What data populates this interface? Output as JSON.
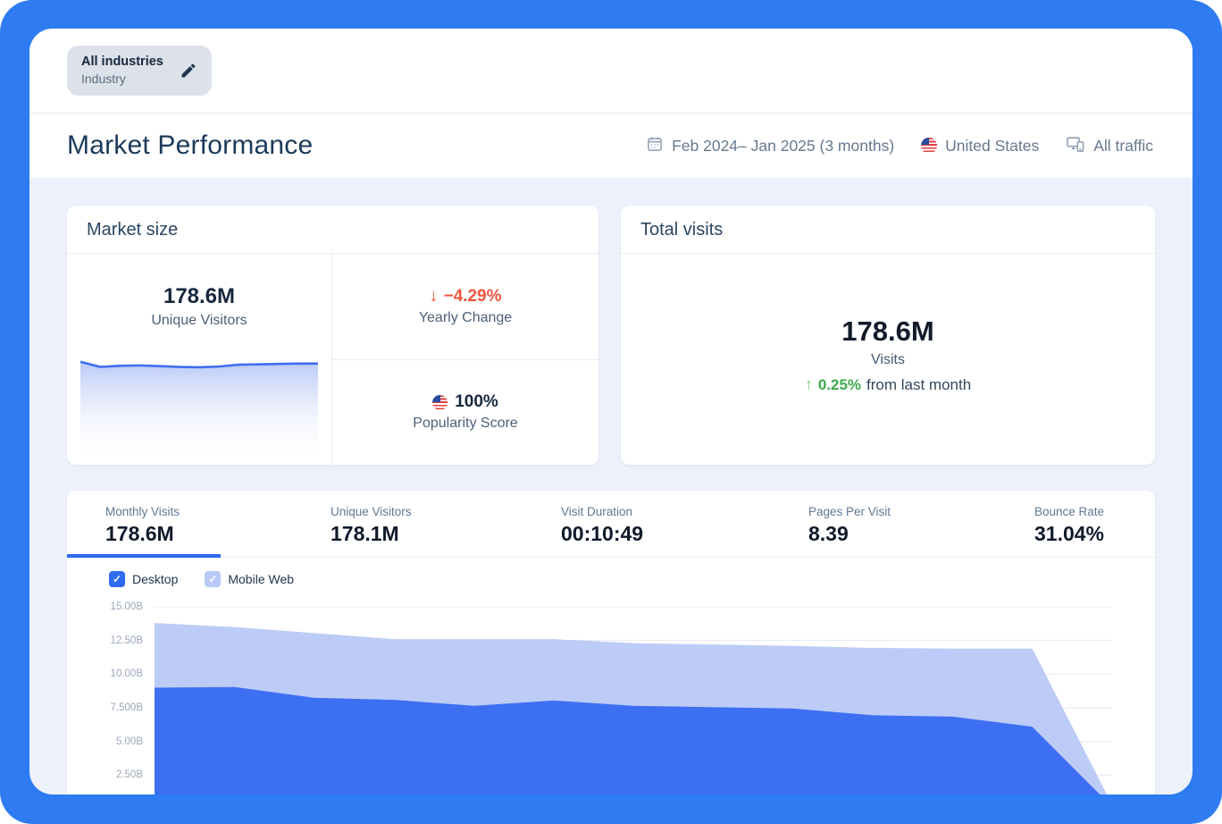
{
  "chip": {
    "title": "All industries",
    "subtitle": "Industry",
    "edit_icon": "pencil-icon"
  },
  "header": {
    "title": "Market Performance",
    "date_range": "Feb 2024– Jan 2025 (3 months)",
    "country": "United States",
    "traffic": "All traffic",
    "icons": [
      "calendar-icon",
      "us-flag-icon",
      "devices-icon"
    ]
  },
  "market_size": {
    "title": "Market size",
    "unique_visitors_value": "178.6M",
    "unique_visitors_label": "Unique Visitors",
    "yearly_change_arrow": "↓",
    "yearly_change_value": "−4.29%",
    "yearly_change_label": "Yearly Change",
    "popularity_value": "100%",
    "popularity_label": "Popularity Score"
  },
  "total_visits": {
    "title": "Total visits",
    "value": "178.6M",
    "label": "Visits",
    "change_arrow": "↑",
    "change_value": "0.25%",
    "change_suffix": "from last month"
  },
  "metrics": {
    "tabs": [
      {
        "label": "Monthly Visits",
        "value": "178.6M",
        "active": true
      },
      {
        "label": "Unique Visitors",
        "value": "178.1M",
        "active": false
      },
      {
        "label": "Visit Duration",
        "value": "00:10:49",
        "active": false
      },
      {
        "label": "Pages Per Visit",
        "value": "8.39",
        "active": false
      },
      {
        "label": "Bounce Rate",
        "value": "31.04%",
        "active": false
      }
    ]
  },
  "filters": {
    "desktop_label": "Desktop",
    "mobile_label": "Mobile Web",
    "desktop_checked": true,
    "mobile_checked": true
  },
  "colors": {
    "accent_blue": "#2f6bf2",
    "light_blue": "#bdcbf7",
    "negative_red": "#f25540",
    "positive_green": "#3cab4c",
    "frame_gradient": [
      "#2e7bf2",
      "#8fdde2"
    ],
    "page_background": "#edf1fb"
  },
  "chart_data": [
    {
      "type": "area",
      "name": "unique-visitors-sparkline",
      "values": [
        13.7,
        13.0,
        13.15,
        13.2,
        13.1,
        13.0,
        12.95,
        13.05,
        13.3,
        13.35,
        13.4,
        13.45,
        13.45
      ],
      "ylim": [
        0,
        15
      ],
      "line_color": "#3f6ef0",
      "fill_top_color": "#b6c6f7",
      "grid": false,
      "legend": false
    },
    {
      "type": "area",
      "name": "monthly-visits-by-device",
      "stacked": true,
      "unit": "B",
      "ylim": [
        0,
        15
      ],
      "grid": true,
      "legend": false,
      "series": [
        {
          "name": "Desktop",
          "color": "#3d6ff2",
          "values": [
            9.0,
            9.05,
            8.25,
            8.1,
            7.65,
            8.05,
            7.65,
            7.55,
            7.45,
            6.95,
            6.85,
            6.1,
            0.15
          ]
        },
        {
          "name": "Mobile Web",
          "color": "#bdcbf7",
          "values": [
            4.8,
            4.45,
            4.8,
            4.5,
            4.95,
            4.55,
            4.65,
            4.65,
            4.65,
            5.0,
            5.05,
            5.8,
            0.15
          ]
        }
      ],
      "yticks": [
        {
          "value": 15,
          "label": "15.00B"
        },
        {
          "value": 12.5,
          "label": "12.50B"
        },
        {
          "value": 10,
          "label": "10.00B"
        },
        {
          "value": 7.5,
          "label": "7.500B"
        },
        {
          "value": 5,
          "label": "5.00B"
        },
        {
          "value": 2.5,
          "label": "2.50B"
        }
      ]
    }
  ]
}
